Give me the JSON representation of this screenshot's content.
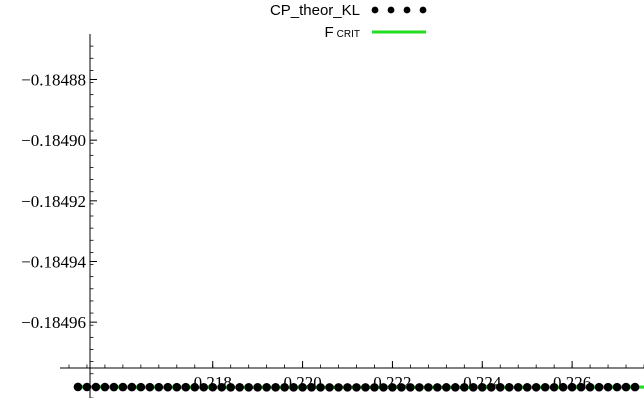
{
  "chart_data": {
    "type": "scatter",
    "title": "",
    "xlabel": "",
    "ylabel": "",
    "xlim": [
      0.2146,
      0.2276
    ],
    "ylim": [
      -0.184985,
      -0.184865
    ],
    "x_ticks": [
      0.218,
      0.22,
      0.222,
      0.224,
      0.226
    ],
    "x_tick_labels": [
      "0.218",
      "0.220",
      "0.222",
      "0.224",
      "0.226"
    ],
    "y_ticks": [
      -0.18488,
      -0.1849,
      -0.18492,
      -0.18494,
      -0.18496
    ],
    "y_tick_labels": [
      "−0.18488",
      "−0.18490",
      "−0.18492",
      "−0.18494",
      "−0.18496"
    ],
    "grid": false,
    "legend_position": "top-center",
    "series": [
      {
        "name": "CP_theor_KL",
        "kind": "points",
        "color": "#000000",
        "curve": {
          "x_min": 0.2217,
          "y_min": -0.1849815,
          "curvature": 0.003038
        },
        "x_values": [
          0.215,
          0.2152,
          0.2154,
          0.2156,
          0.2158,
          0.216,
          0.2162,
          0.2164,
          0.2166,
          0.2168,
          0.217,
          0.2172,
          0.2174,
          0.2176,
          0.2178,
          0.218,
          0.2182,
          0.2184,
          0.2186,
          0.2188,
          0.219,
          0.2192,
          0.2194,
          0.2196,
          0.2198,
          0.22,
          0.2202,
          0.2204,
          0.2206,
          0.2208,
          0.221,
          0.2212,
          0.2214,
          0.2216,
          0.2218,
          0.222,
          0.2222,
          0.2224,
          0.2226,
          0.2228,
          0.223,
          0.2232,
          0.2234,
          0.2236,
          0.2238,
          0.224,
          0.2242,
          0.2244,
          0.2246,
          0.2248,
          0.225,
          0.2252,
          0.2254,
          0.2256,
          0.2258,
          0.226,
          0.2262,
          0.2264,
          0.2266,
          0.2268,
          0.227,
          0.2272,
          0.2274
        ]
      },
      {
        "name": "F",
        "name_subscript": "CRIT",
        "kind": "line",
        "color": "#22dd22",
        "curve": {
          "x_min": 0.2217,
          "y_min": -0.1849815,
          "curvature": 0.003038
        },
        "x_range": [
          0.215,
          0.2276
        ]
      }
    ]
  }
}
